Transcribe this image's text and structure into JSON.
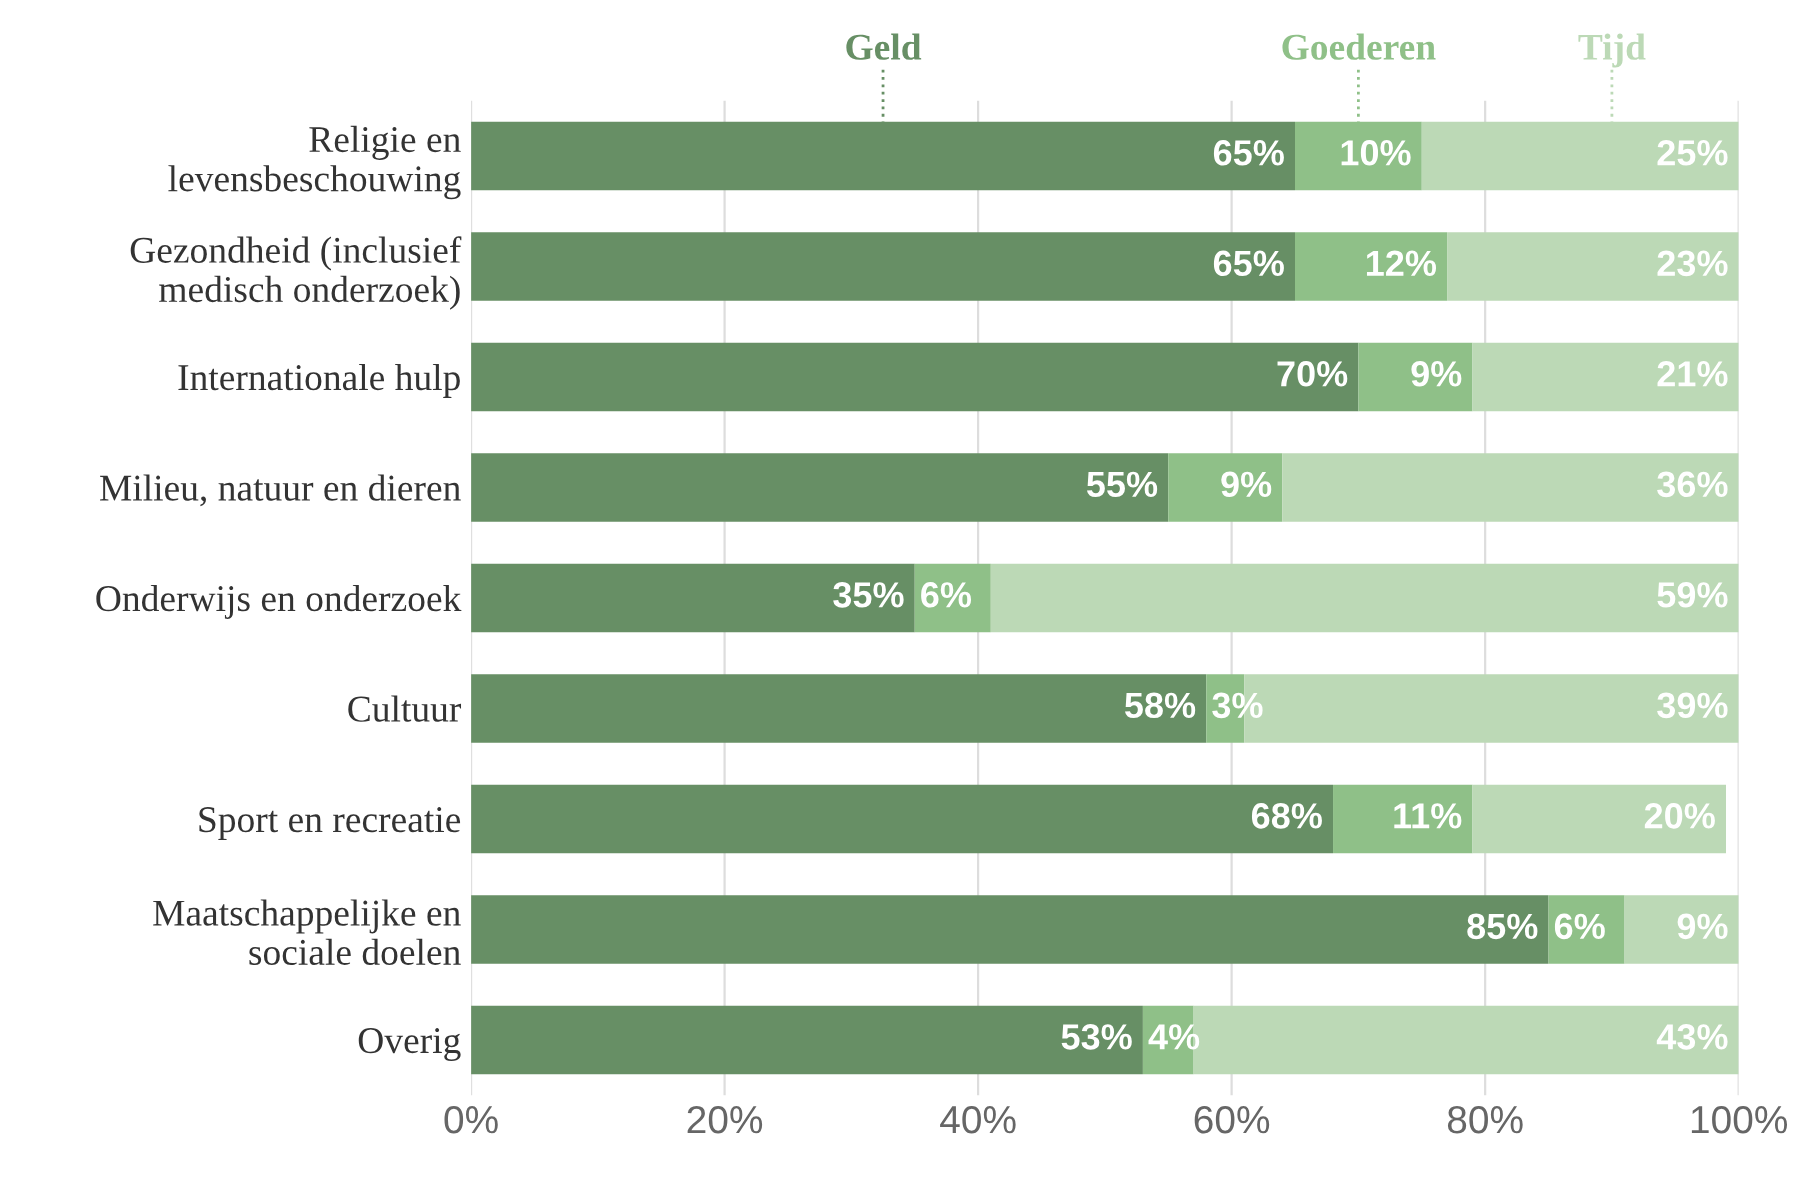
{
  "chart_data": {
    "type": "bar",
    "orientation": "horizontal",
    "stacked": true,
    "categories": [
      "Religie en\nlevensbeschouwing",
      "Gezondheid (inclusief\nmedisch onderzoek)",
      "Internationale hulp",
      "Milieu, natuur en dieren",
      "Onderwijs en onderzoek",
      "Cultuur",
      "Sport en recreatie",
      "Maatschappelijke en\nsociale doelen",
      "Overig"
    ],
    "series": [
      {
        "name": "Geld",
        "color": "#678f65",
        "values": [
          65,
          65,
          70,
          55,
          35,
          58,
          68,
          85,
          53
        ],
        "value_labels": [
          "65%",
          "65%",
          "70%",
          "55%",
          "35%",
          "58%",
          "68%",
          "85%",
          "53%"
        ]
      },
      {
        "name": "Goederen",
        "color": "#8fc088",
        "values": [
          10,
          12,
          9,
          9,
          6,
          3,
          11,
          6,
          4
        ],
        "value_labels": [
          "10%",
          "12%",
          "9%",
          "9%",
          "6%",
          "3%",
          "11%",
          "6%",
          "4%"
        ]
      },
      {
        "name": "Tijd",
        "color": "#bcd9b6",
        "values": [
          25,
          23,
          21,
          36,
          59,
          39,
          20,
          9,
          43
        ],
        "value_labels": [
          "25%",
          "23%",
          "21%",
          "36%",
          "59%",
          "39%",
          "20%",
          "9%",
          "43%"
        ]
      }
    ],
    "xlim": [
      0,
      100
    ],
    "xticks": [
      {
        "value": 0,
        "label": "0%"
      },
      {
        "value": 20,
        "label": "20%"
      },
      {
        "value": 40,
        "label": "40%"
      },
      {
        "value": 60,
        "label": "60%"
      },
      {
        "value": 80,
        "label": "80%"
      },
      {
        "value": 100,
        "label": "100%"
      }
    ],
    "grid": "x",
    "legend": "top"
  }
}
